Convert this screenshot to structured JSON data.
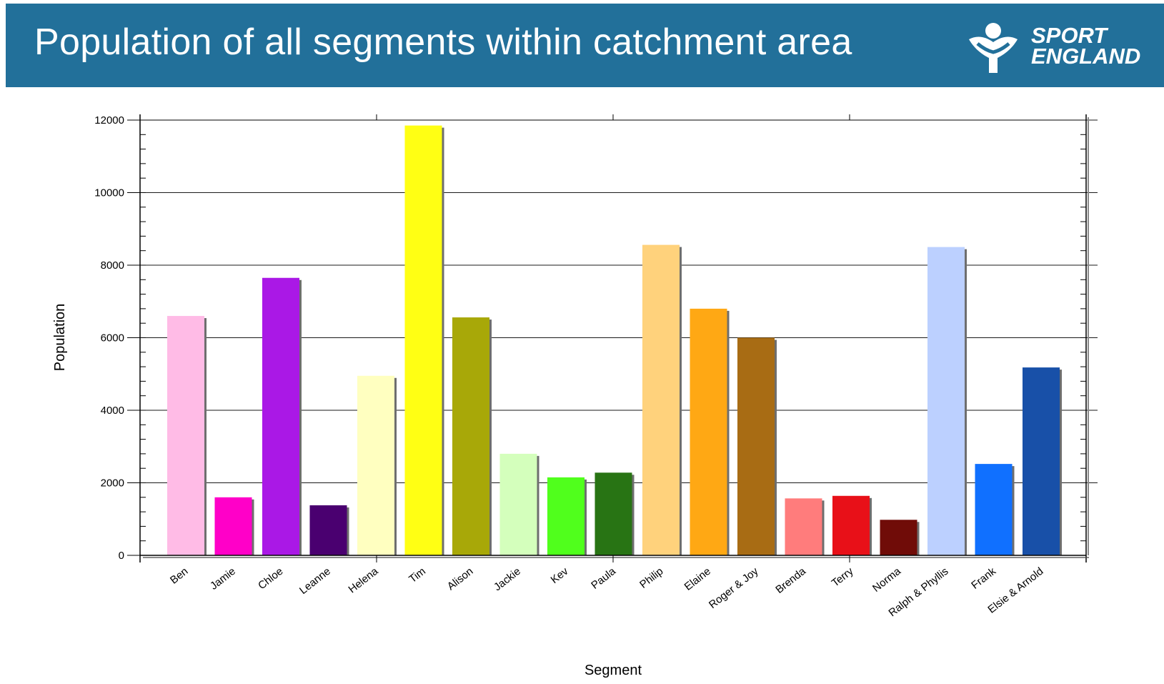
{
  "header": {
    "title": "Population of all segments within catchment area",
    "logo_line1": "SPORT",
    "logo_line2": "ENGLAND",
    "logo_icon": "sport-england-figure-icon"
  },
  "colors": {
    "header_bg": "#22709a"
  },
  "chart_data": {
    "type": "bar",
    "title": "",
    "xlabel": "Segment",
    "ylabel": "Population",
    "ylim": [
      0,
      12000
    ],
    "yticks": [
      0,
      2000,
      4000,
      6000,
      8000,
      10000,
      12000
    ],
    "grid": true,
    "legend": "none",
    "categories": [
      "Ben",
      "Jamie",
      "Chloe",
      "Leanne",
      "Helena",
      "Tim",
      "Alison",
      "Jackie",
      "Kev",
      "Paula",
      "Philip",
      "Elaine",
      "Roger & Joy",
      "Brenda",
      "Terry",
      "Norma",
      "Ralph & Phyllis",
      "Frank",
      "Elsie & Arnold"
    ],
    "values": [
      6600,
      1600,
      7650,
      1380,
      4950,
      11850,
      6560,
      2800,
      2150,
      2280,
      8560,
      6800,
      6000,
      1570,
      1640,
      980,
      8500,
      2520,
      5180
    ],
    "colors": [
      "#ffbbe6",
      "#ff00c8",
      "#aa18e6",
      "#4a0070",
      "#ffffc0",
      "#ffff14",
      "#a8a808",
      "#d4ffbc",
      "#50ff1c",
      "#287414",
      "#ffd27c",
      "#ffa814",
      "#a86c14",
      "#ff7c7c",
      "#e81018",
      "#700c08",
      "#bcd0ff",
      "#1070ff",
      "#1850a8"
    ]
  }
}
